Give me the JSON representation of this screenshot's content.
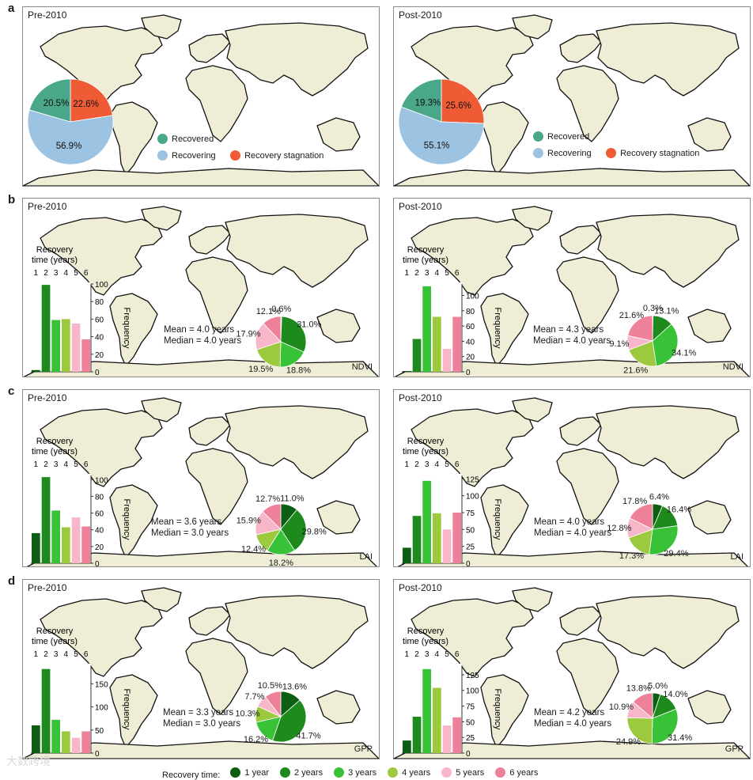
{
  "colors": {
    "recovered": "#4aa78a",
    "recovering": "#9dc3e2",
    "stagnation": "#ef5b35",
    "years": [
      "#0c5e12",
      "#1e8a1e",
      "#38c238",
      "#9cc93e",
      "#f8b7c9",
      "#ef8099"
    ],
    "land": "#efedd5",
    "coast": "#111111"
  },
  "panel_a": {
    "letter": "a",
    "pre": {
      "title": "Pre-2010",
      "slices": [
        {
          "key": "recovered",
          "label": "20.5%",
          "value": 20.5
        },
        {
          "key": "recovering",
          "label": "56.9%",
          "value": 56.9
        },
        {
          "key": "stagnation",
          "label": "22.6%",
          "value": 22.6
        }
      ]
    },
    "post": {
      "title": "Post-2010",
      "slices": [
        {
          "key": "recovered",
          "label": "19.3%",
          "value": 19.3
        },
        {
          "key": "recovering",
          "label": "55.1%",
          "value": 55.1
        },
        {
          "key": "stagnation",
          "label": "25.6%",
          "value": 25.6
        }
      ]
    },
    "legend": {
      "recovered": "Recovered",
      "recovering": "Recovering",
      "stagnation": "Recovery stagnation"
    }
  },
  "histogram_labels": {
    "title_line1": "Recovery",
    "title_line2": "time (years)",
    "ylabel": "Frequency",
    "years": [
      "1",
      "2",
      "3",
      "4",
      "5",
      "6"
    ]
  },
  "chart_data": [
    {
      "type": "bar",
      "panel": "b",
      "period": "Pre-2010",
      "index": "NDVI",
      "categories": [
        "1",
        "2",
        "3",
        "4",
        "5",
        "6"
      ],
      "values": [
        2,
        99,
        59,
        60,
        55,
        37
      ],
      "ylim": [
        0,
        100
      ],
      "yticks": [
        "0",
        "20",
        "40",
        "60",
        "80",
        "100"
      ],
      "mean": "Mean = 4.0 years",
      "median": "Median = 4.0 years",
      "pie": [
        0.6,
        31.0,
        18.8,
        19.5,
        17.9,
        12.1
      ],
      "pie_labels": [
        "0.6%",
        "31.0%",
        "18.8%",
        "19.5%",
        "17.9%",
        "12.1%"
      ]
    },
    {
      "type": "bar",
      "panel": "b",
      "period": "Post-2010",
      "index": "NDVI",
      "categories": [
        "1",
        "2",
        "3",
        "4",
        "5",
        "6"
      ],
      "values": [
        1,
        43,
        112,
        72,
        30,
        72
      ],
      "ylim": [
        0,
        115
      ],
      "yticks": [
        "0",
        "20",
        "40",
        "60",
        "80",
        "100"
      ],
      "mean": "Mean = 4.3 years",
      "median": "Median = 4.0 years",
      "pie": [
        0.3,
        13.1,
        34.1,
        21.6,
        9.1,
        21.6
      ],
      "pie_labels": [
        "0.3%",
        "13.1%",
        "34.1%",
        "21.6%",
        "9.1%",
        "21.6%"
      ]
    },
    {
      "type": "bar",
      "panel": "c",
      "period": "Pre-2010",
      "index": "LAI",
      "categories": [
        "1",
        "2",
        "3",
        "4",
        "5",
        "6"
      ],
      "values": [
        36,
        103,
        63,
        43,
        55,
        44
      ],
      "ylim": [
        0,
        105
      ],
      "yticks": [
        "0",
        "20",
        "40",
        "60",
        "80",
        "100"
      ],
      "mean": "Mean = 3.6 years",
      "median": "Median = 3.0 years",
      "pie": [
        11.0,
        29.8,
        18.2,
        12.4,
        15.9,
        12.7
      ],
      "pie_labels": [
        "11.0%",
        "29.8%",
        "18.2%",
        "12.4%",
        "15.9%",
        "12.7%"
      ]
    },
    {
      "type": "bar",
      "panel": "c",
      "period": "Post-2010",
      "index": "LAI",
      "categories": [
        "1",
        "2",
        "3",
        "4",
        "5",
        "6"
      ],
      "values": [
        23,
        70,
        122,
        74,
        50,
        75
      ],
      "ylim": [
        0,
        130
      ],
      "yticks": [
        "0",
        "25",
        "50",
        "75",
        "100",
        "125"
      ],
      "mean": "Mean = 4.0 years",
      "median": "Median = 4.0 years",
      "pie": [
        6.4,
        16.4,
        29.4,
        17.3,
        12.8,
        17.8
      ],
      "pie_labels": [
        "6.4%",
        "16.4%",
        "29.4%",
        "17.3%",
        "12.8%",
        "17.8%"
      ]
    },
    {
      "type": "bar",
      "panel": "d",
      "period": "Pre-2010",
      "index": "GPP",
      "categories": [
        "1",
        "2",
        "3",
        "4",
        "5",
        "6"
      ],
      "values": [
        60,
        182,
        72,
        47,
        33,
        47
      ],
      "ylim": [
        0,
        190
      ],
      "yticks": [
        "0",
        "50",
        "100",
        "150"
      ],
      "mean": "Mean = 3.3 years",
      "median": "Median = 3.0 years",
      "pie": [
        13.6,
        41.7,
        16.2,
        10.3,
        7.7,
        10.5
      ],
      "pie_labels": [
        "13.6%",
        "41.7%",
        "16.2%",
        "10.3%",
        "7.7%",
        "10.5%"
      ]
    },
    {
      "type": "bar",
      "panel": "d",
      "period": "Post-2010",
      "index": "GPP",
      "categories": [
        "1",
        "2",
        "3",
        "4",
        "5",
        "6"
      ],
      "values": [
        20,
        58,
        134,
        104,
        44,
        57
      ],
      "ylim": [
        0,
        140
      ],
      "yticks": [
        "0",
        "25",
        "50",
        "75",
        "100",
        "125"
      ],
      "mean": "Mean = 4.2 years",
      "median": "Median = 4.0 years",
      "pie": [
        5.0,
        14.0,
        31.4,
        24.9,
        10.9,
        13.8
      ],
      "pie_labels": [
        "5.0%",
        "14.0%",
        "31.4%",
        "24.9%",
        "10.9%",
        "13.8%"
      ]
    }
  ],
  "bottom_legend": {
    "title": "Recovery time:",
    "items": [
      "1 year",
      "2 years",
      "3 years",
      "4 years",
      "5 years",
      "6 years"
    ]
  },
  "watermark": "大数跨境"
}
